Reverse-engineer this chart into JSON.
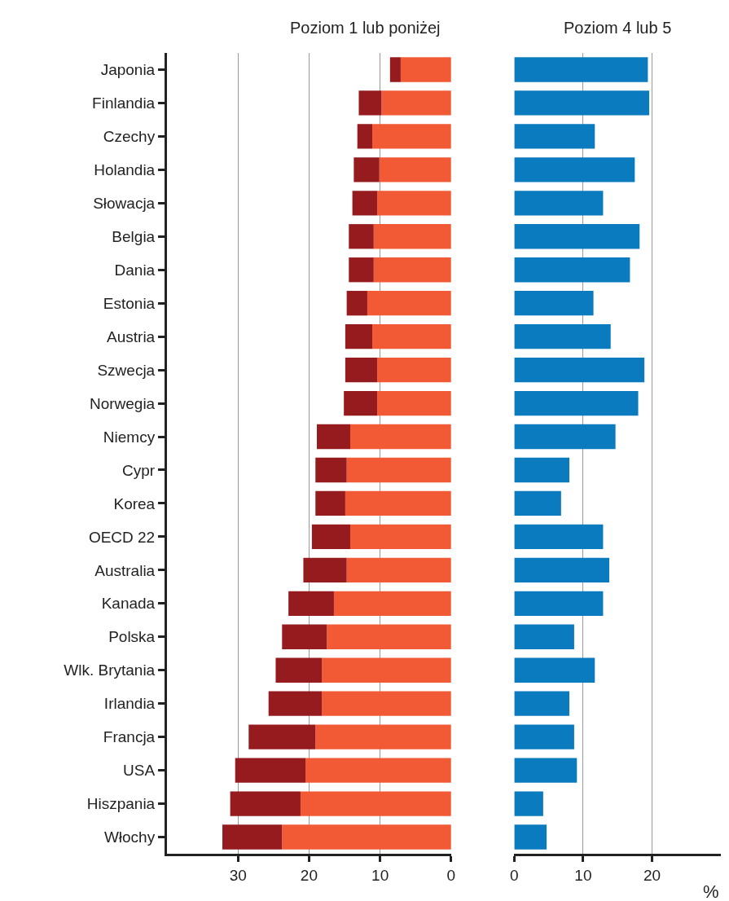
{
  "chart_data": [
    {
      "type": "bar",
      "orientation": "horizontal",
      "stacked": true,
      "title": "Poziom 1 lub poniżej",
      "categories": [
        "Japonia",
        "Finlandia",
        "Czechy",
        "Holandia",
        "Słowacja",
        "Belgia",
        "Dania",
        "Estonia",
        "Austria",
        "Szwecja",
        "Norwegia",
        "Niemcy",
        "Cypr",
        "Korea",
        "OECD 22",
        "Australia",
        "Kanada",
        "Polska",
        "Wlk. Brytania",
        "Irlandia",
        "Francja",
        "USA",
        "Hiszpania",
        "Włochy"
      ],
      "series": [
        {
          "color": "#f15a35",
          "values": [
            7.1,
            9.8,
            11.1,
            10.1,
            10.4,
            10.9,
            10.9,
            11.8,
            11.1,
            10.4,
            10.4,
            14.2,
            14.7,
            14.9,
            14.2,
            14.7,
            16.5,
            17.5,
            18.2,
            18.2,
            19.1,
            20.5,
            21.2,
            23.8
          ]
        },
        {
          "color": "#951b1f",
          "values": [
            1.5,
            3.2,
            2.1,
            3.6,
            3.5,
            3.5,
            3.5,
            2.9,
            3.8,
            4.5,
            4.7,
            4.7,
            4.4,
            4.2,
            5.4,
            6.1,
            6.4,
            6.3,
            6.5,
            7.5,
            9.4,
            9.9,
            9.9,
            8.4
          ]
        }
      ],
      "xlim": [
        40,
        0
      ],
      "xticks": [
        30,
        20,
        10,
        0
      ],
      "grid": "x"
    },
    {
      "type": "bar",
      "orientation": "horizontal",
      "title": "Poziom 4 lub 5",
      "xlabel": "%",
      "categories": [
        "Japonia",
        "Finlandia",
        "Czechy",
        "Holandia",
        "Słowacja",
        "Belgia",
        "Dania",
        "Estonia",
        "Austria",
        "Szwecja",
        "Norwegia",
        "Niemcy",
        "Cypr",
        "Korea",
        "OECD 22",
        "Australia",
        "Kanada",
        "Polska",
        "Wlk. Brytania",
        "Irlandia",
        "Francja",
        "USA",
        "Hiszpania",
        "Włochy"
      ],
      "series": [
        {
          "color": "#0b7bbf",
          "values": [
            19.4,
            19.6,
            11.7,
            17.5,
            12.9,
            18.2,
            16.8,
            11.5,
            14.0,
            18.9,
            18.0,
            14.7,
            8.0,
            6.8,
            12.9,
            13.8,
            12.9,
            8.7,
            11.7,
            8.0,
            8.7,
            9.1,
            4.2,
            4.7
          ]
        }
      ],
      "xlim": [
        0,
        30
      ],
      "xticks": [
        0,
        10,
        20
      ],
      "grid": "x",
      "tick_labels": "x"
    }
  ]
}
